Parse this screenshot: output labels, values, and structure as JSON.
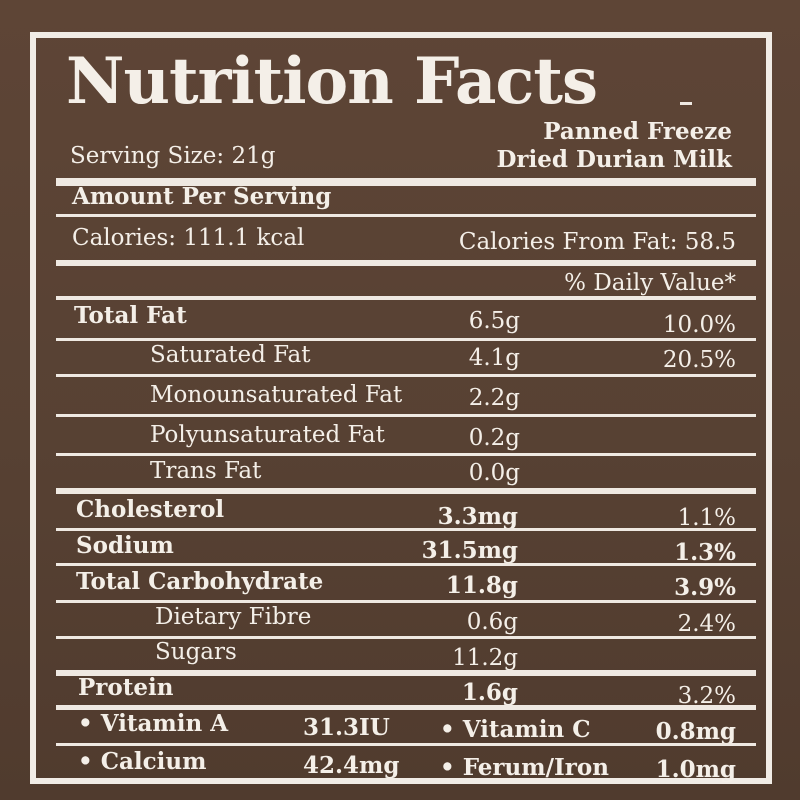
{
  "title": "Nutrition Facts",
  "product": {
    "line1": "Panned Freeze",
    "line2": "Dried Durian Milk"
  },
  "serving_size": "Serving Size: 21g",
  "amount_per_serving": "Amount Per Serving",
  "calories": "Calories: 111.1 kcal",
  "calories_from_fat": "Calories From Fat: 58.5",
  "daily_value_header": "% Daily Value*",
  "nutrients": [
    {
      "name": "Total Fat",
      "amount": "6.5g",
      "dv": "10.0%"
    },
    {
      "name": "Saturated Fat",
      "amount": "4.1g",
      "dv": "20.5%"
    },
    {
      "name": "Monounsaturated Fat",
      "amount": "2.2g",
      "dv": ""
    },
    {
      "name": "Polyunsaturated Fat",
      "amount": "0.2g",
      "dv": ""
    },
    {
      "name": "Trans Fat",
      "amount": "0.0g",
      "dv": ""
    },
    {
      "name": "Cholesterol",
      "amount": "3.3mg",
      "dv": "1.1%"
    },
    {
      "name": "Sodium",
      "amount": "31.5mg",
      "dv": "1.3%"
    },
    {
      "name": "Total Carbohydrate",
      "amount": "11.8g",
      "dv": "3.9%"
    },
    {
      "name": "Dietary Fibre",
      "amount": "0.6g",
      "dv": "2.4%"
    },
    {
      "name": "Sugars",
      "amount": "11.2g",
      "dv": ""
    },
    {
      "name": "Protein",
      "amount": "1.6g",
      "dv": "3.2%"
    }
  ],
  "vitamins": [
    {
      "name": "• Vitamin A",
      "amount": "31.3IU"
    },
    {
      "name": "• Vitamin C",
      "amount": "0.8mg"
    },
    {
      "name": "• Calcium",
      "amount": "42.4mg"
    },
    {
      "name": "• Ferum/Iron",
      "amount": "1.0mg"
    }
  ],
  "colors": {
    "background": "#5b4334",
    "text": "#f4efe8",
    "rules": "#efe9e2"
  }
}
